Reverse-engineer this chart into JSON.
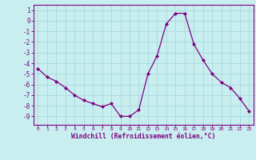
{
  "hours": [
    0,
    1,
    2,
    3,
    4,
    5,
    6,
    7,
    8,
    9,
    10,
    11,
    12,
    13,
    14,
    15,
    16,
    17,
    18,
    19,
    20,
    21,
    22,
    23
  ],
  "values": [
    -4.5,
    -5.3,
    -5.7,
    -6.3,
    -7.0,
    -7.5,
    -7.8,
    -8.1,
    -7.8,
    -9.0,
    -9.0,
    -8.4,
    -5.0,
    -3.3,
    -0.3,
    0.7,
    0.7,
    -2.2,
    -3.7,
    -5.0,
    -5.8,
    -6.3,
    -7.3,
    -8.5
  ],
  "line_color": "#800080",
  "marker": "D",
  "marker_size": 2,
  "bg_color": "#c8eef0",
  "grid_color": "#a8d8dc",
  "xlabel": "Windchill (Refroidissement éolien,°C)",
  "ylim": [
    -9.8,
    1.5
  ],
  "xlim": [
    -0.5,
    23.5
  ],
  "yticks": [
    1,
    0,
    -1,
    -2,
    -3,
    -4,
    -5,
    -6,
    -7,
    -8,
    -9
  ],
  "xticks": [
    0,
    1,
    2,
    3,
    4,
    5,
    6,
    7,
    8,
    9,
    10,
    11,
    12,
    13,
    14,
    15,
    16,
    17,
    18,
    19,
    20,
    21,
    22,
    23
  ],
  "title_color": "#800080",
  "axis_color": "#800080",
  "tick_color": "#800080"
}
